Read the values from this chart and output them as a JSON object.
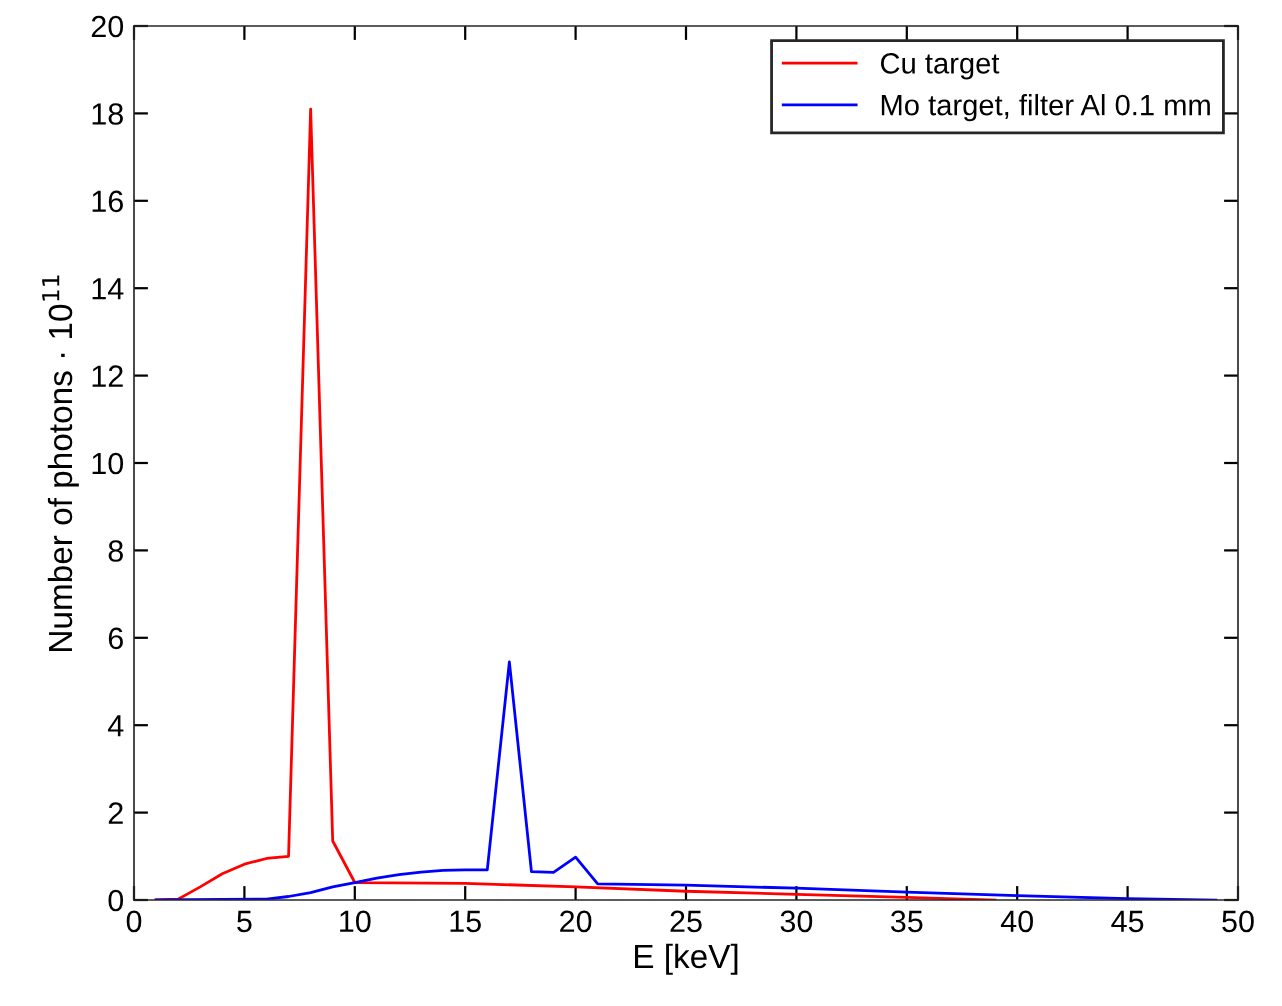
{
  "chart_data": {
    "type": "line",
    "xlabel": "E [keV]",
    "ylabel": "Number of photons · 10$^{11}$",
    "xlim": [
      0,
      50
    ],
    "xticks": [
      0,
      5,
      10,
      15,
      20,
      25,
      30,
      35,
      40,
      45,
      50
    ],
    "ylim": [
      0,
      20
    ],
    "yticks": [
      0,
      2,
      4,
      6,
      8,
      10,
      12,
      14,
      16,
      18,
      20
    ],
    "grid": false,
    "legend": "top right",
    "series": [
      {
        "name": "Cu target",
        "color": "#ff0000",
        "x": [
          1,
          2,
          3,
          4,
          5,
          6,
          7,
          8,
          9,
          10,
          15,
          20,
          25,
          30,
          35,
          39
        ],
        "values": [
          0,
          0.02,
          0.3,
          0.6,
          0.82,
          0.95,
          1.0,
          18.1,
          1.35,
          0.4,
          0.38,
          0.3,
          0.2,
          0.13,
          0.06,
          0
        ]
      },
      {
        "name": "Mo target, filter Al 0.1 mm",
        "color": "#0000ff",
        "x": [
          1,
          6,
          7,
          8,
          9,
          10,
          11,
          12,
          13,
          14,
          15,
          16,
          17,
          18,
          19,
          20,
          21,
          25,
          30,
          35,
          40,
          45,
          49
        ],
        "values": [
          0,
          0.02,
          0.08,
          0.17,
          0.3,
          0.4,
          0.5,
          0.58,
          0.64,
          0.68,
          0.69,
          0.69,
          5.45,
          0.65,
          0.63,
          0.98,
          0.37,
          0.34,
          0.27,
          0.18,
          0.1,
          0.03,
          0
        ]
      }
    ]
  }
}
